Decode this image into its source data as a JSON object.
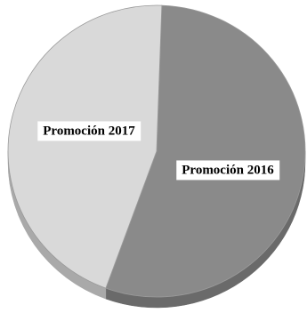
{
  "chart_data": {
    "type": "pie",
    "title": "",
    "style": "3d",
    "slices": [
      {
        "label": "Promoción 2016",
        "value": 55,
        "color": "#8a8a8a",
        "side_color": "#6a6a6a"
      },
      {
        "label": "Promoción 2017",
        "value": 45,
        "color": "#d9d9d9",
        "side_color": "#a9a9a9"
      }
    ]
  }
}
